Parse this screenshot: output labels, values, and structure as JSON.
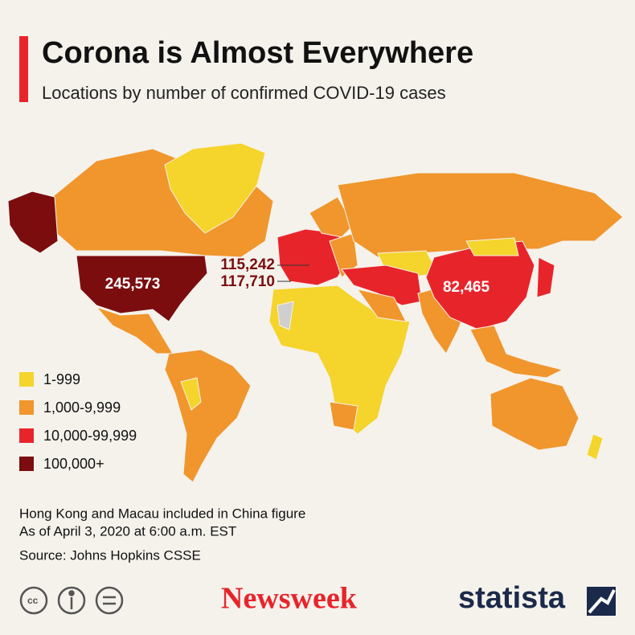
{
  "header": {
    "title": "Corona is Almost Everywhere",
    "subtitle": "Locations by number of confirmed COVID-19 cases"
  },
  "legend": [
    {
      "label": "1-999",
      "color": "#f5d42c"
    },
    {
      "label": "1,000-9,999",
      "color": "#f0962c"
    },
    {
      "label": "10,000-99,999",
      "color": "#e8242b"
    },
    {
      "label": "100,000+",
      "color": "#7b0d0f"
    }
  ],
  "map_labels": [
    "245,573",
    "115,242",
    "117,710",
    "82,465"
  ],
  "notes": [
    "Hong Kong and Macau included in China figure",
    "As of April 3, 2020 at 6:00 a.m. EST"
  ],
  "source": "Source: Johns Hopkins CSSE",
  "logos": {
    "newsweek": "Newsweek",
    "statista": "statista"
  }
}
